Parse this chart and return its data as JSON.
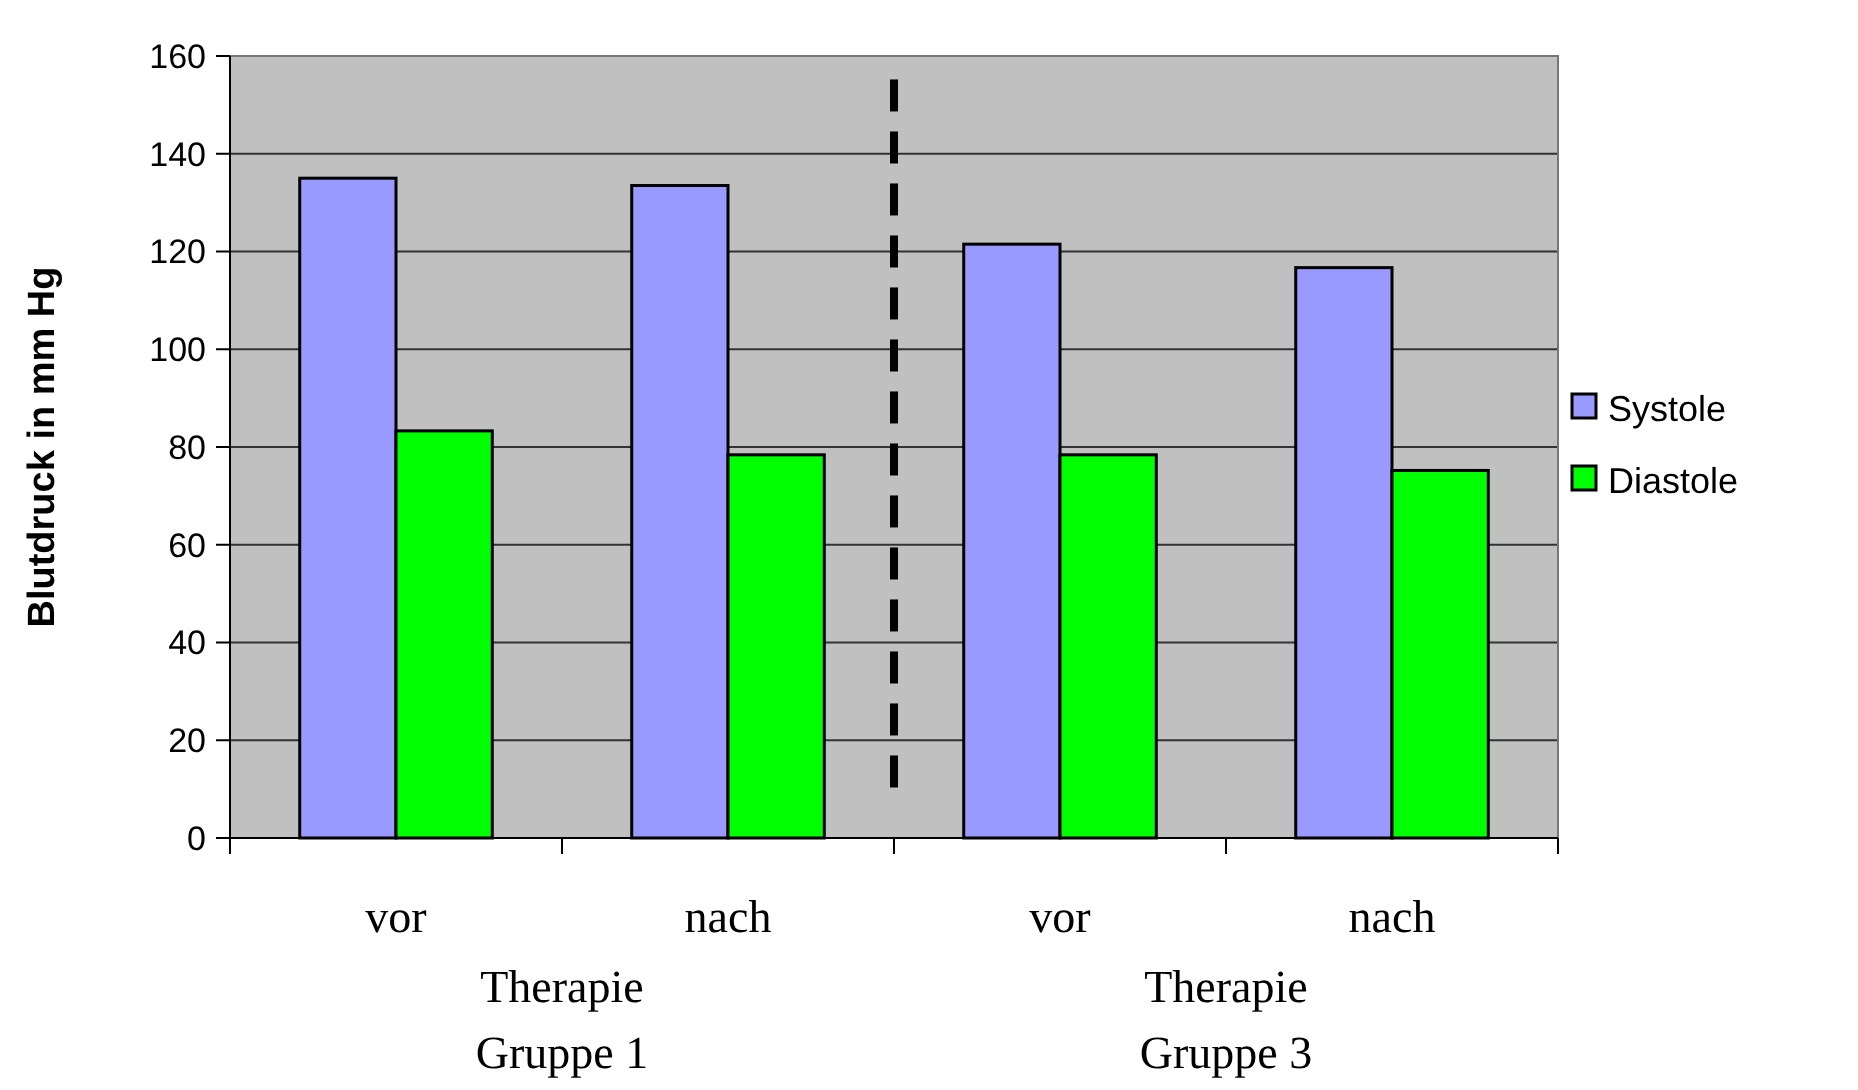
{
  "chart_data": {
    "type": "bar",
    "ylabel": "Blutdruck in mm Hg",
    "categories": [
      "vor",
      "nach",
      "vor",
      "nach"
    ],
    "series": [
      {
        "name": "Systole",
        "color": "#9999ff",
        "values": [
          135,
          133.5,
          121.5,
          116.7
        ]
      },
      {
        "name": "Diastole",
        "color": "#00ff00",
        "values": [
          83.3,
          78.4,
          78.4,
          75.2
        ]
      }
    ],
    "ylim": [
      0,
      160
    ],
    "yticks": [
      0,
      20,
      40,
      60,
      80,
      100,
      120,
      140,
      160
    ],
    "grid": "y",
    "legend": "right",
    "annotations": [
      "Therapie Gruppe 1",
      "Therapie Gruppe 3"
    ]
  }
}
